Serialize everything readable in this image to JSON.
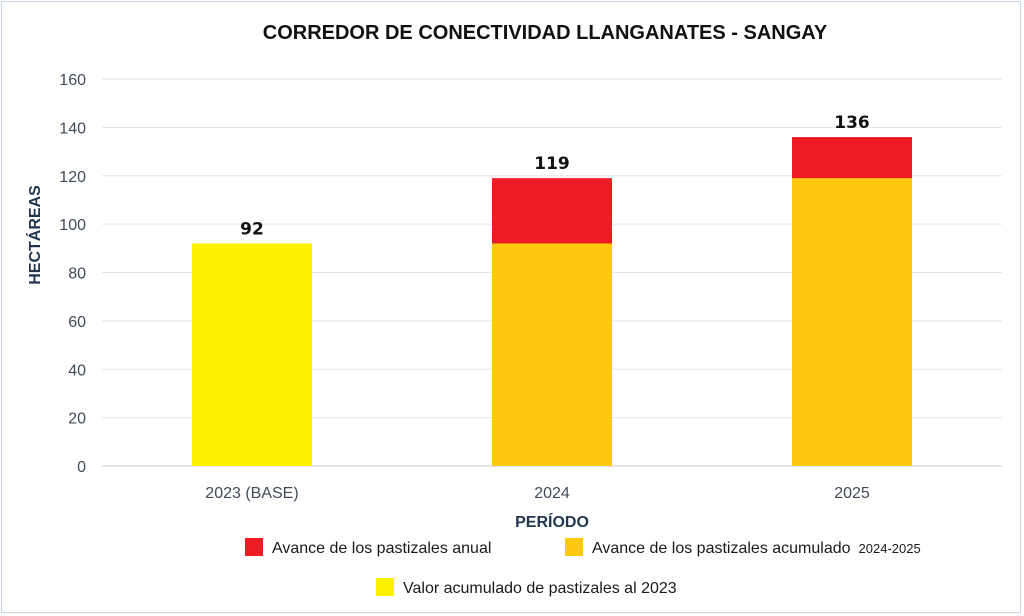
{
  "chart_data": {
    "type": "bar",
    "stacked": true,
    "title": "CORREDOR DE CONECTIVIDAD LLANGANATES - SANGAY",
    "xlabel": "PERÍODO",
    "ylabel": "HECTÁREAS",
    "ylim": [
      0,
      160
    ],
    "yticks": [
      0,
      20,
      40,
      60,
      80,
      100,
      120,
      140,
      160
    ],
    "grid": true,
    "legend_position": "bottom",
    "categories": [
      "2023 (BASE)",
      "2024",
      "2025"
    ],
    "series": [
      {
        "name": "Valor acumulado de pastizales al 2023",
        "color": "#fff200",
        "values": [
          92,
          0,
          0
        ]
      },
      {
        "name": "Avance de los pastizales acumulado",
        "name_suffix": "2024-2025",
        "color": "#ffc90e",
        "values": [
          0,
          92,
          119
        ]
      },
      {
        "name": "Avance de los pastizales anual",
        "color": "#ed1c24",
        "values": [
          0,
          27,
          17
        ]
      }
    ],
    "totals": [
      "92",
      "119",
      "136"
    ]
  }
}
